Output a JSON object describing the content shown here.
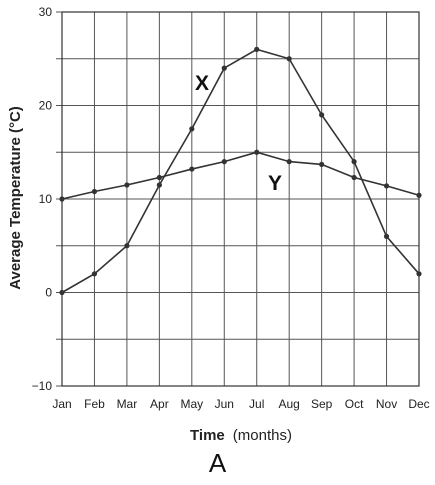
{
  "caption": "A",
  "chart_data": {
    "type": "line",
    "categories": [
      "Jan",
      "Feb",
      "Mar",
      "Apr",
      "May",
      "Jun",
      "Jul",
      "Aug",
      "Sep",
      "Oct",
      "Nov",
      "Dec"
    ],
    "series": [
      {
        "name": "X",
        "values": [
          0,
          2,
          5,
          11.5,
          17.5,
          24,
          26,
          25,
          19,
          14,
          6,
          2
        ]
      },
      {
        "name": "Y",
        "values": [
          10,
          10.8,
          11.5,
          12.3,
          13.2,
          14,
          15,
          14,
          13.7,
          12.3,
          11.4,
          10.4
        ]
      }
    ],
    "xlabel": "Time",
    "xlabel_unit": "(months)",
    "ylabel": "Average Temperature (°C)",
    "ylim": [
      -10,
      30
    ],
    "yticks": [
      -10,
      0,
      10,
      20,
      30
    ],
    "grid": true,
    "legend": "none",
    "colors": {
      "line": "#333333",
      "grid": "#555555"
    }
  }
}
